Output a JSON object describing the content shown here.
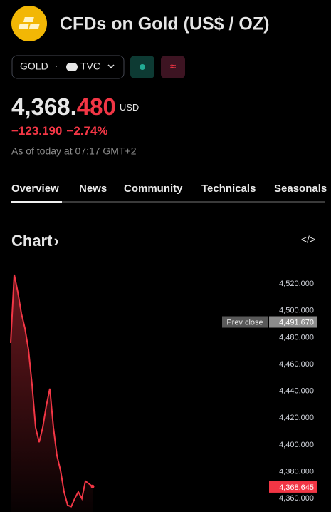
{
  "header": {
    "title": "CFDs on Gold (US$ / OZ)"
  },
  "symbol": {
    "ticker": "GOLD",
    "separator": "·",
    "exchange": "TVC",
    "alert_icon": "≈"
  },
  "price": {
    "main": "4,368.",
    "decimals": "480",
    "currency": "USD",
    "change": "−123.190",
    "change_percent": "−2.74%",
    "as_of": "As of today at 07:17 GMT+2"
  },
  "tabs": [
    "Overview",
    "News",
    "Community",
    "Technicals",
    "Seasonals"
  ],
  "chart_section": {
    "title": "Chart",
    "arrow": "›",
    "embed_icon": "</>"
  },
  "chart_data": {
    "type": "line",
    "color": "#f23645",
    "values": [
      4476,
      4527,
      4514,
      4498,
      4487,
      4471,
      4445,
      4413,
      4402,
      4413,
      4429,
      4442,
      4413,
      4392,
      4381,
      4365,
      4355,
      4354,
      4360,
      4365,
      4360,
      4373,
      4371,
      4369
    ],
    "ylim": [
      4350,
      4535
    ],
    "yticks": [
      {
        "value": 4360,
        "label": "4,360.000"
      },
      {
        "value": 4380,
        "label": "4,380.000"
      },
      {
        "value": 4400,
        "label": "4,400.000"
      },
      {
        "value": 4420,
        "label": "4,420.000"
      },
      {
        "value": 4440,
        "label": "4,440.000"
      },
      {
        "value": 4460,
        "label": "4,460.000"
      },
      {
        "value": 4480,
        "label": "4,480.000"
      },
      {
        "value": 4500,
        "label": "4,500.000"
      },
      {
        "value": 4520,
        "label": "4,520.000"
      }
    ],
    "prev_close": {
      "text": "Prev close",
      "value": 4491.67,
      "label": "4,491.670"
    },
    "last_price": {
      "value": 4368.645,
      "label": "4,368.645"
    }
  }
}
